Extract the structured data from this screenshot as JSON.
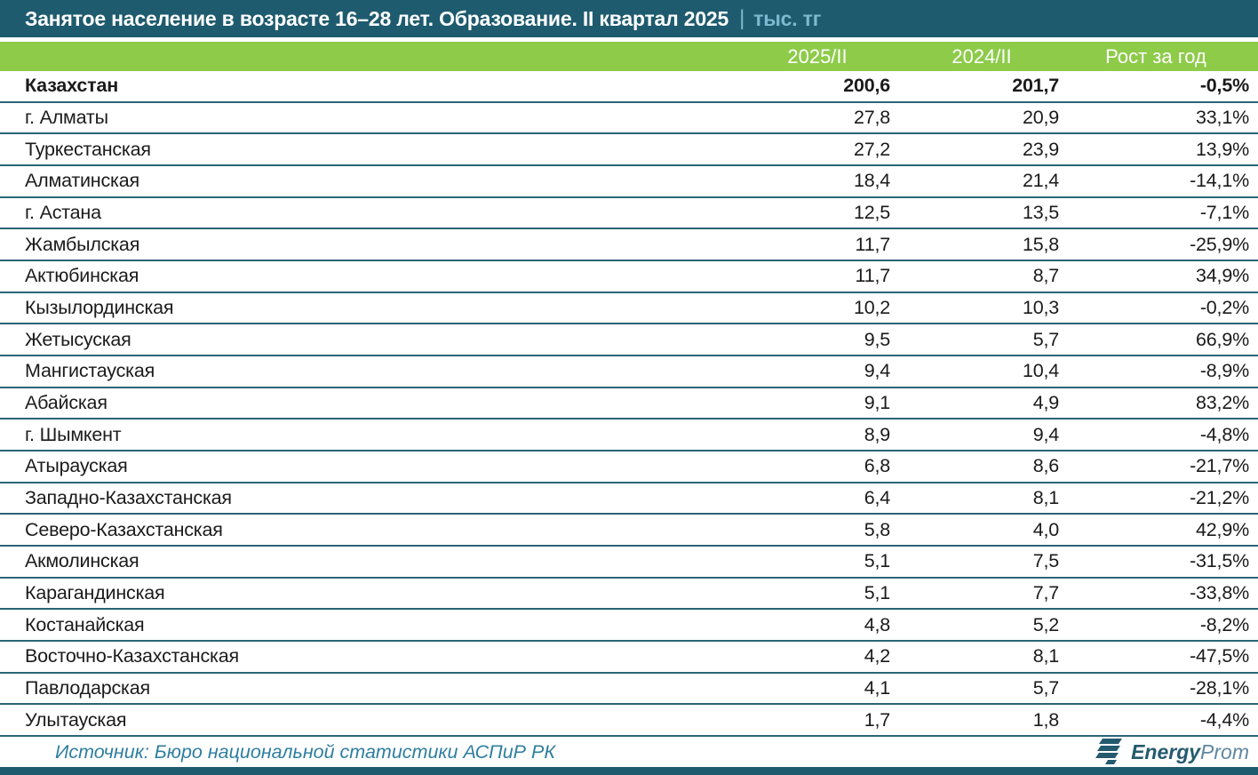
{
  "title": {
    "main": "Занятое население в возрасте 16–28 лет. Образование. II квартал 2025",
    "separator": "|",
    "unit": "тыс. тг"
  },
  "chart_data": {
    "type": "table",
    "title": "Занятое население в возрасте 16–28 лет. Образование. II квартал 2025 | тыс. тг",
    "columns": [
      "",
      "2025/II",
      "2024/II",
      "Рост за год"
    ],
    "rows": [
      [
        "Казахстан",
        "200,6",
        "201,7",
        "-0,5%"
      ],
      [
        "г. Алматы",
        "27,8",
        "20,9",
        "33,1%"
      ],
      [
        "Туркестанская",
        "27,2",
        "23,9",
        "13,9%"
      ],
      [
        "Алматинская",
        "18,4",
        "21,4",
        "-14,1%"
      ],
      [
        "г. Астана",
        "12,5",
        "13,5",
        "-7,1%"
      ],
      [
        "Жамбылская",
        "11,7",
        "15,8",
        "-25,9%"
      ],
      [
        "Актюбинская",
        "11,7",
        "8,7",
        "34,9%"
      ],
      [
        "Кызылординская",
        "10,2",
        "10,3",
        "-0,2%"
      ],
      [
        "Жетысуская",
        "9,5",
        "5,7",
        "66,9%"
      ],
      [
        "Мангистауская",
        "9,4",
        "10,4",
        "-8,9%"
      ],
      [
        "Абайская",
        "9,1",
        "4,9",
        "83,2%"
      ],
      [
        "г. Шымкент",
        "8,9",
        "9,4",
        "-4,8%"
      ],
      [
        "Атырауская",
        "6,8",
        "8,6",
        "-21,7%"
      ],
      [
        "Западно-Казахстанская",
        "6,4",
        "8,1",
        "-21,2%"
      ],
      [
        "Северо-Казахстанская",
        "5,8",
        "4,0",
        "42,9%"
      ],
      [
        "Акмолинская",
        "5,1",
        "7,5",
        "-31,5%"
      ],
      [
        "Карагандинская",
        "5,1",
        "7,7",
        "-33,8%"
      ],
      [
        "Костанайская",
        "4,8",
        "5,2",
        "-8,2%"
      ],
      [
        "Восточно-Казахстанская",
        "4,2",
        "8,1",
        "-47,5%"
      ],
      [
        "Павлодарская",
        "4,1",
        "5,7",
        "-28,1%"
      ],
      [
        "Улытауская",
        "1,7",
        "1,8",
        "-4,4%"
      ]
    ],
    "bold_row_index": 0
  },
  "footer": {
    "source": "Источник: Бюро национальной статистики АСПиР РК",
    "logo_bold": "Energy",
    "logo_light": "Prom"
  },
  "colors": {
    "header_teal": "#1E5B6E",
    "header_green": "#8DCB49",
    "row_border": "#2B6577",
    "text_dark": "#1B1B1B",
    "title_unit_blue": "#7CBAD1",
    "source_blue": "#2E7EA0",
    "logo_dark": "#235A6E",
    "logo_light": "#5F88A0"
  }
}
